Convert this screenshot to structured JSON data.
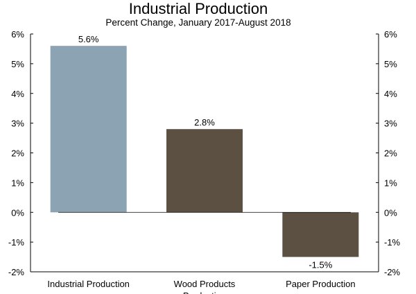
{
  "chart_data": {
    "type": "bar",
    "title": "Industrial Production",
    "subtitle": "Percent Change, January 2017-August 2018",
    "categories": [
      "Industrial Production",
      "Wood Products Production",
      "Paper Production"
    ],
    "category_lines": [
      [
        "Industrial Production"
      ],
      [
        "Wood Products",
        "Production"
      ],
      [
        "Paper Production"
      ]
    ],
    "values": [
      5.6,
      2.8,
      -1.5
    ],
    "data_labels": [
      "5.6%",
      "2.8%",
      "-1.5%"
    ],
    "colors": [
      "#8ca3b4",
      "#5c5043",
      "#5c5043"
    ],
    "ylim": [
      -2,
      6
    ],
    "yticks": [
      -2,
      -1,
      0,
      1,
      2,
      3,
      4,
      5,
      6
    ],
    "ytick_labels": [
      "-2%",
      "-1%",
      "0%",
      "1%",
      "2%",
      "3%",
      "4%",
      "5%",
      "6%"
    ],
    "xlabel": "",
    "ylabel": "",
    "grid": false
  }
}
